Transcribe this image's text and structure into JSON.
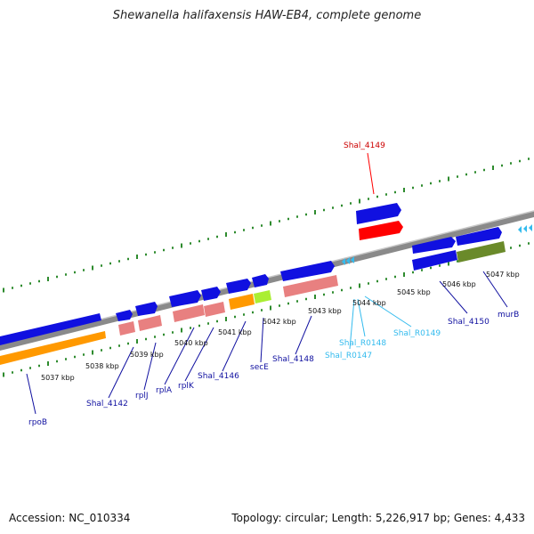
{
  "title": "Shewanella halifaxensis HAW-EB4, complete genome",
  "footer": {
    "accession": "Accession: NC_010334",
    "summary": "Topology: circular; Length: 5,226,917 bp; Genes: 4,433"
  },
  "colors": {
    "cds": "#1010e0",
    "gene": "#e88080",
    "orange_gene": "#ff9900",
    "lime_gene": "#aaee33",
    "olive_gene": "#6a8a2a",
    "highlight": "#ff0000",
    "trna": "#33bbee",
    "ticks": "#2e8b2e",
    "axis": "#888888"
  },
  "scale_labels": [
    {
      "text": "5037 kbp"
    },
    {
      "text": "5038 kbp"
    },
    {
      "text": "5039 kbp"
    },
    {
      "text": "5040 kbp"
    },
    {
      "text": "5041 kbp"
    },
    {
      "text": "5042 kbp"
    },
    {
      "text": "5043 kbp"
    },
    {
      "text": "5044 kbp"
    },
    {
      "text": "5045 kbp"
    },
    {
      "text": "5046 kbp"
    },
    {
      "text": "5047 kbp"
    }
  ],
  "gene_labels": [
    {
      "text": "rpoB"
    },
    {
      "text": "Shal_4142"
    },
    {
      "text": "rplJ"
    },
    {
      "text": "rplA"
    },
    {
      "text": "rplK"
    },
    {
      "text": "Shal_4146"
    },
    {
      "text": "secE"
    },
    {
      "text": "Shal_4148"
    },
    {
      "text": "Shal_R0147"
    },
    {
      "text": "Shal_R0148"
    },
    {
      "text": "Shal_R0149"
    },
    {
      "text": "Shal_4150"
    },
    {
      "text": "murB"
    },
    {
      "text": "Shal_4149"
    }
  ]
}
